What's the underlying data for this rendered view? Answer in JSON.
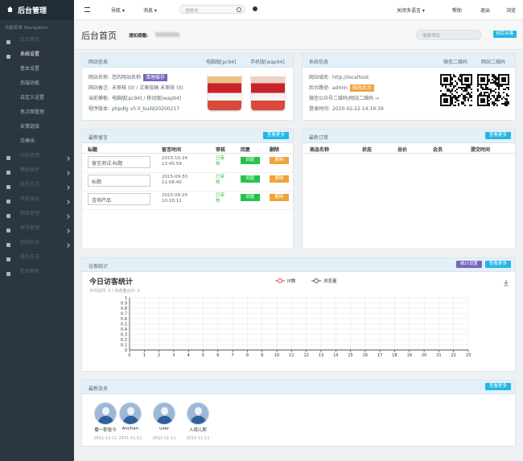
{
  "sidebar": {
    "title": "后台管理",
    "nav_label": "功能菜单 Navigation",
    "menu": [
      {
        "label": "后台首页"
      },
      {
        "label": "系统设置",
        "active": true,
        "children": [
          "基本设置",
          "后端功能",
          "自定义设置",
          "焦点图管理",
          "友情链接",
          "白模块"
        ]
      },
      {
        "label": "内容管理",
        "expandable": true
      },
      {
        "label": "模版插件",
        "expandable": true
      },
      {
        "label": "联系方式",
        "expandable": true
      },
      {
        "label": "手机版本",
        "expandable": true
      },
      {
        "label": "频单管理",
        "expandable": true
      },
      {
        "label": "帐号管理",
        "expandable": true
      },
      {
        "label": "网站安全",
        "expandable": true
      },
      {
        "label": "操作日志"
      },
      {
        "label": "检测更新"
      }
    ]
  },
  "topbar": {
    "nav": "导航",
    "messages": "消息",
    "search_placeholder": "搜模块",
    "language": "关闭多语言",
    "help": "帮助",
    "logout": "退出",
    "browse": "浏览"
  },
  "page_header": {
    "title": "后台首页",
    "notice_label": "通知提醒:",
    "search_placeholder": "搜索项目",
    "button": "前后台集"
  },
  "site_info": {
    "title": "网站信息",
    "columns": [
      "电脑版[pc94]",
      "手机版[wap94]"
    ],
    "lines": [
      {
        "label": "网站名称:",
        "value": "您的网站名称",
        "button": "清理缓存"
      },
      {
        "label": "网站备注:",
        "value": "未审核 (0) / 文章投稿 未审核 (0)"
      },
      {
        "label": "当前模板:",
        "value": "电脑版[pc94] / 移动版[wap94]"
      },
      {
        "label": "程序版本:",
        "value": "phpdlg v5.0_build20200217"
      }
    ]
  },
  "system_info": {
    "title": "系统信息",
    "columns": [
      "微信二维码",
      "网站二维码"
    ],
    "lines": [
      {
        "label": "网站域名:",
        "value": "http://localhost"
      },
      {
        "label": "后台路径:",
        "value": "admin",
        "button": "修改后台"
      },
      {
        "label": "微信公众号二维码/网站二维码 →"
      },
      {
        "label": "登录时间:",
        "value": "2020-02-22 14:19:39"
      }
    ]
  },
  "messages": {
    "title": "最新留言",
    "more": "查看更多",
    "headers": [
      "标题",
      "留言时间",
      "审核",
      "回复",
      "删除"
    ],
    "rows": [
      {
        "title": "留言测试-标题",
        "time": [
          "2015-10-24",
          "12:45:59"
        ],
        "status": "已审核",
        "reply": "回复",
        "delete": "删除"
      },
      {
        "title": "标题",
        "time": [
          "2015-09-30",
          "11:08:40"
        ],
        "status": "已审核",
        "reply": "回复",
        "delete": "删除"
      },
      {
        "title": "咨询产品",
        "time": [
          "2015-09-29",
          "10:18:11"
        ],
        "status": "已审核",
        "reply": "回复",
        "delete": "删除"
      }
    ]
  },
  "orders": {
    "title": "最新订单",
    "more": "查看更多",
    "headers": [
      "商品名称",
      "状态",
      "总价",
      "会员",
      "提交时间"
    ]
  },
  "visitors": {
    "title": "访客统计",
    "settings": "统计设置",
    "more": "查看更多"
  },
  "chart_data": {
    "type": "line",
    "title": "今日访客统计",
    "subtitle": "平均访问: 0 / 浏览量合计: 0",
    "x": [
      0,
      1,
      2,
      3,
      4,
      5,
      6,
      7,
      8,
      9,
      10,
      11,
      12,
      13,
      14,
      15,
      16,
      17,
      18,
      19,
      20,
      21,
      22,
      23
    ],
    "xlim": [
      0,
      23
    ],
    "xticks": [
      0,
      1,
      2,
      3,
      4,
      5,
      6,
      7,
      8,
      9,
      10,
      11,
      12,
      13,
      14,
      15,
      16,
      17,
      18,
      19,
      20,
      21,
      22,
      23
    ],
    "ylim": [
      0,
      1
    ],
    "yticks": [
      0,
      0.1,
      0.2,
      0.3,
      0.4,
      0.5,
      0.6,
      0.7,
      0.8,
      0.9,
      1
    ],
    "grid": true,
    "legend": "top",
    "series": [
      {
        "name": "IP数",
        "color": "#e2444a",
        "values": [
          0,
          0,
          0,
          0,
          0,
          0,
          0,
          0,
          0,
          0,
          0,
          0,
          0,
          0,
          0,
          0,
          0,
          0,
          0,
          0,
          0,
          0,
          0,
          0
        ]
      },
      {
        "name": "浏览量",
        "color": "#50565c",
        "values": [
          0,
          0,
          0,
          0,
          0,
          0,
          0,
          0,
          0,
          0,
          0,
          0,
          0,
          0,
          0,
          0,
          0,
          0,
          0,
          0,
          0,
          0,
          0,
          0
        ]
      }
    ]
  },
  "members": {
    "title": "最新会员",
    "more": "查看更多",
    "items": [
      {
        "name": "撒一职张今",
        "date": "2011-11-11"
      },
      {
        "name": "Anchen",
        "date": "2011-11-11"
      },
      {
        "name": "user",
        "date": "2011-11-11"
      },
      {
        "name": "入境儿郎",
        "date": "2011-11-11"
      }
    ]
  }
}
